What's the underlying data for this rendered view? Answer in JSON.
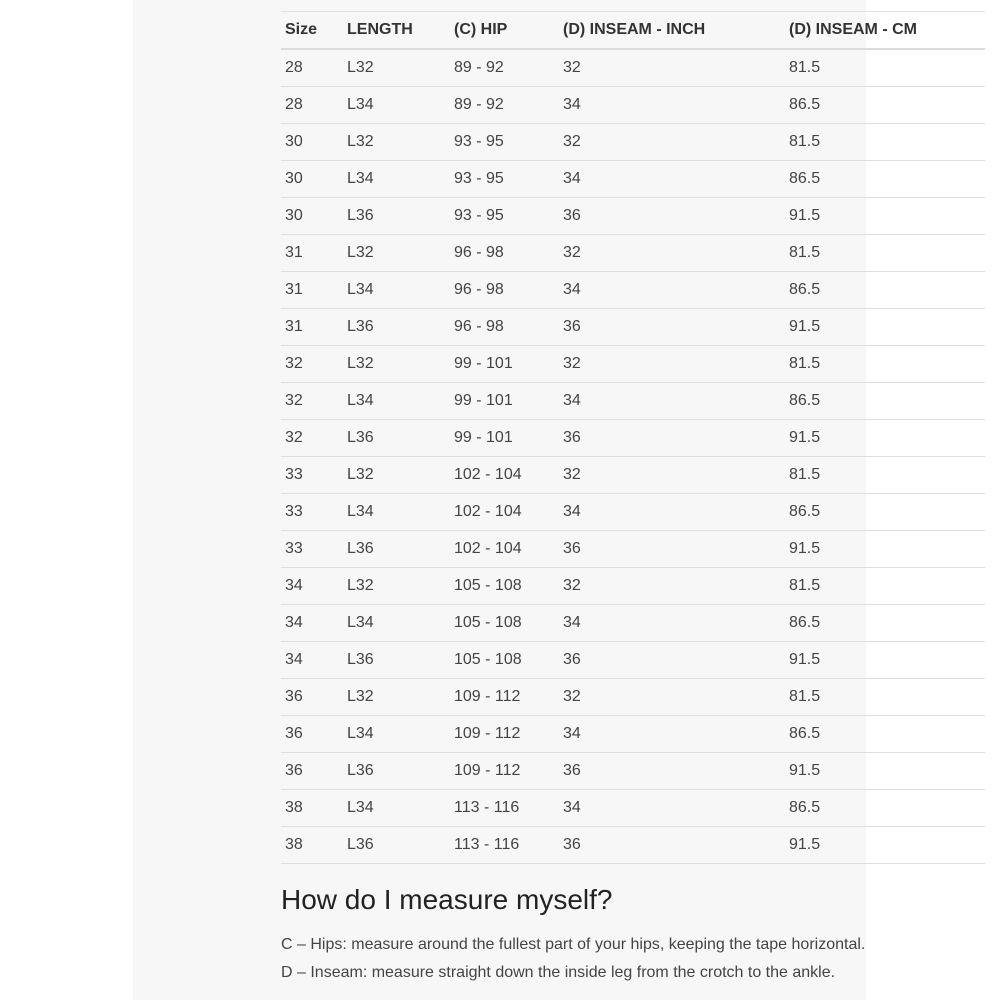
{
  "table": {
    "headers": [
      "Size",
      "LENGTH",
      "(C) HIP",
      "(D) INSEAM - INCH",
      "(D) INSEAM - CM"
    ],
    "rows": [
      [
        "28",
        "L32",
        "89 - 92",
        "32",
        "81.5"
      ],
      [
        "28",
        "L34",
        "89 - 92",
        "34",
        "86.5"
      ],
      [
        "30",
        "L32",
        "93 - 95",
        "32",
        "81.5"
      ],
      [
        "30",
        "L34",
        "93 - 95",
        "34",
        "86.5"
      ],
      [
        "30",
        "L36",
        "93 - 95",
        "36",
        "91.5"
      ],
      [
        "31",
        "L32",
        "96 - 98",
        "32",
        "81.5"
      ],
      [
        "31",
        "L34",
        "96 - 98",
        "34",
        "86.5"
      ],
      [
        "31",
        "L36",
        "96 - 98",
        "36",
        "91.5"
      ],
      [
        "32",
        "L32",
        "99 - 101",
        "32",
        "81.5"
      ],
      [
        "32",
        "L34",
        "99 - 101",
        "34",
        "86.5"
      ],
      [
        "32",
        "L36",
        "99 - 101",
        "36",
        "91.5"
      ],
      [
        "33",
        "L32",
        "102 - 104",
        "32",
        "81.5"
      ],
      [
        "33",
        "L34",
        "102 - 104",
        "34",
        "86.5"
      ],
      [
        "33",
        "L36",
        "102 - 104",
        "36",
        "91.5"
      ],
      [
        "34",
        "L32",
        "105 - 108",
        "32",
        "81.5"
      ],
      [
        "34",
        "L34",
        "105 - 108",
        "34",
        "86.5"
      ],
      [
        "34",
        "L36",
        "105 - 108",
        "36",
        "91.5"
      ],
      [
        "36",
        "L32",
        "109 - 112",
        "32",
        "81.5"
      ],
      [
        "36",
        "L34",
        "109 - 112",
        "34",
        "86.5"
      ],
      [
        "36",
        "L36",
        "109 - 112",
        "36",
        "91.5"
      ],
      [
        "38",
        "L34",
        "113 - 116",
        "34",
        "86.5"
      ],
      [
        "38",
        "L36",
        "113 - 116",
        "36",
        "91.5"
      ]
    ]
  },
  "guide": {
    "heading": "How do I measure myself?",
    "hips": "C – Hips: measure around the fullest part of your hips, keeping the tape horizontal.",
    "inseam": "D – Inseam: measure straight down the inside leg from the crotch to the ankle."
  }
}
